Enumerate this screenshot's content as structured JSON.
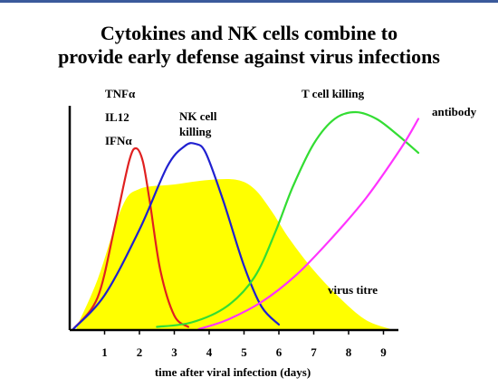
{
  "title_line1": "Cytokines and NK cells combine to",
  "title_line2": "provide early defense against virus infections",
  "chart_data": {
    "type": "area",
    "xlabel": "time after viral infection (days)",
    "ylabel": "",
    "xlim": [
      0,
      10
    ],
    "x_ticks": [
      "1",
      "2",
      "3",
      "4",
      "5",
      "6",
      "7",
      "8",
      "9"
    ],
    "series": [
      {
        "name": "virus titre",
        "color": "#ffff00",
        "fill": true,
        "x": [
          0.2,
          0.8,
          1.5,
          2,
          3,
          4,
          4.8,
          5.3,
          5.8,
          6.3,
          7,
          7.8,
          8.5,
          9.2
        ],
        "y": [
          0.01,
          0.22,
          0.54,
          0.62,
          0.64,
          0.66,
          0.66,
          0.62,
          0.52,
          0.4,
          0.26,
          0.13,
          0.04,
          0.0
        ]
      },
      {
        "name": "TNFα IL12 IFNα",
        "color": "#e02020",
        "x": [
          0.1,
          0.8,
          1.3,
          1.7,
          1.9,
          2.1,
          2.3,
          2.6,
          3.0,
          3.4
        ],
        "y": [
          0.0,
          0.14,
          0.46,
          0.74,
          0.8,
          0.74,
          0.56,
          0.26,
          0.06,
          0.01
        ]
      },
      {
        "name": "NK cell killing",
        "color": "#2020d0",
        "x": [
          0.1,
          1,
          2,
          2.8,
          3.3,
          3.6,
          3.9,
          4.4,
          5,
          5.5,
          6
        ],
        "y": [
          0.0,
          0.15,
          0.44,
          0.72,
          0.81,
          0.82,
          0.78,
          0.57,
          0.28,
          0.1,
          0.02
        ]
      },
      {
        "name": "T cell killing",
        "color": "#33dd33",
        "x": [
          2.5,
          3.5,
          4.5,
          5.3,
          5.9,
          6.4,
          7.0,
          7.6,
          8.2,
          8.8,
          9.4,
          10.0
        ],
        "y": [
          0.01,
          0.03,
          0.1,
          0.23,
          0.43,
          0.63,
          0.82,
          0.93,
          0.96,
          0.93,
          0.86,
          0.78
        ]
      },
      {
        "name": "antibody",
        "color": "#ff33ff",
        "x": [
          3.7,
          4.5,
          5.5,
          6.5,
          7.5,
          8.5,
          9.5,
          10.0
        ],
        "y": [
          0.0,
          0.04,
          0.12,
          0.24,
          0.4,
          0.58,
          0.8,
          0.93
        ]
      }
    ],
    "labels": {
      "cytokines": [
        "TNFα",
        "IL12",
        "IFNα"
      ],
      "nk": [
        "NK cell",
        "killing"
      ],
      "tcell": "T cell killing",
      "antibody": "antibody",
      "virus": "virus titre"
    }
  }
}
